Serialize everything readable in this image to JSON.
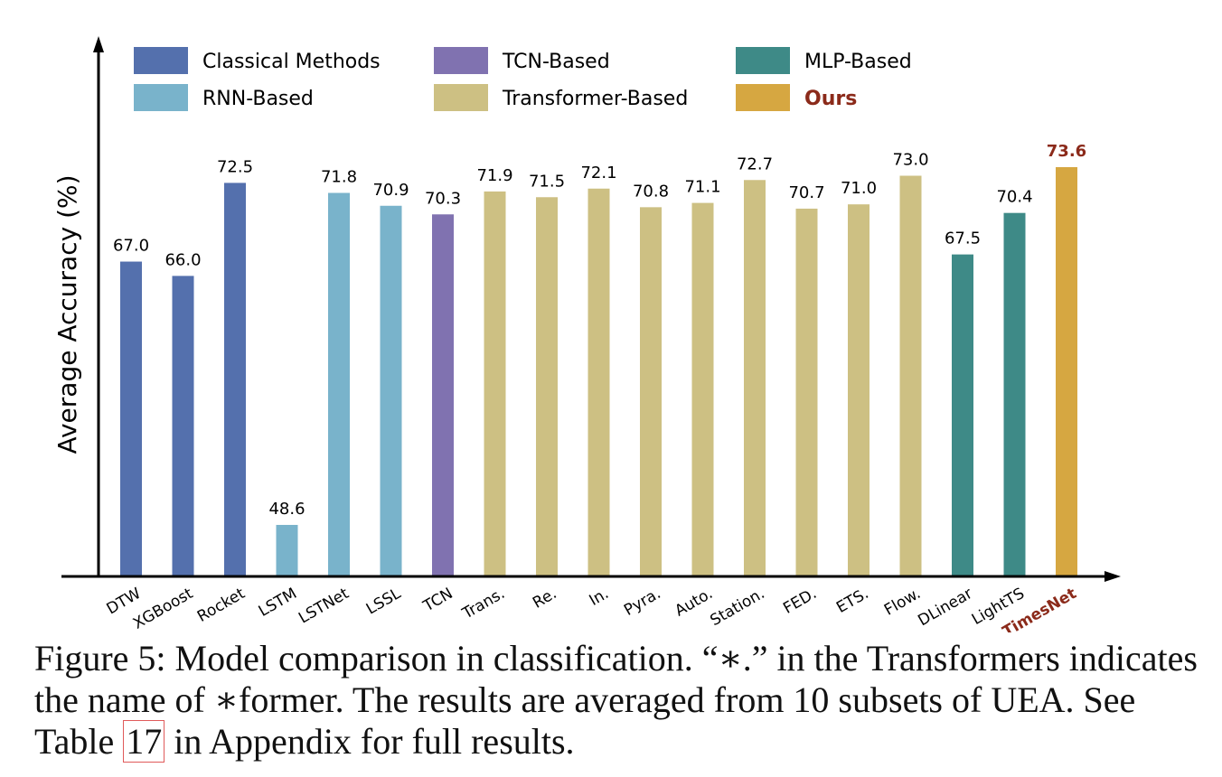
{
  "chart_data": {
    "type": "bar",
    "ylabel": "Average Accuracy (%)",
    "xlabel": "",
    "ylim": [
      45,
      75
    ],
    "grid": false,
    "legend_position": "top",
    "categories": [
      "DTW",
      "XGBoost",
      "Rocket",
      "LSTM",
      "LSTNet",
      "LSSL",
      "TCN",
      "Trans.",
      "Re.",
      "In.",
      "Pyra.",
      "Auto.",
      "Station.",
      "FED.",
      "ETS.",
      "Flow.",
      "DLinear",
      "LightTS",
      "TimesNet"
    ],
    "values": [
      67.0,
      66.0,
      72.5,
      48.6,
      71.8,
      70.9,
      70.3,
      71.9,
      71.5,
      72.1,
      70.8,
      71.1,
      72.7,
      70.7,
      71.0,
      73.0,
      67.5,
      70.4,
      73.6
    ],
    "value_labels": [
      "67.0",
      "66.0",
      "72.5",
      "48.6",
      "71.8",
      "70.9",
      "70.3",
      "71.9",
      "71.5",
      "72.1",
      "70.8",
      "71.1",
      "72.7",
      "70.7",
      "71.0",
      "73.0",
      "67.5",
      "70.4",
      "73.6"
    ],
    "groups": [
      "Classical Methods",
      "Classical Methods",
      "Classical Methods",
      "RNN-Based",
      "RNN-Based",
      "RNN-Based",
      "TCN-Based",
      "Transformer-Based",
      "Transformer-Based",
      "Transformer-Based",
      "Transformer-Based",
      "Transformer-Based",
      "Transformer-Based",
      "Transformer-Based",
      "Transformer-Based",
      "Transformer-Based",
      "MLP-Based",
      "MLP-Based",
      "Ours"
    ],
    "legend": [
      {
        "name": "Classical Methods",
        "color": "#5470ad"
      },
      {
        "name": "TCN-Based",
        "color": "#8072b0"
      },
      {
        "name": "MLP-Based",
        "color": "#3e8a87"
      },
      {
        "name": "RNN-Based",
        "color": "#79b3cb"
      },
      {
        "name": "Transformer-Based",
        "color": "#cdc083"
      },
      {
        "name": "Ours",
        "color": "#d6a741"
      }
    ],
    "highlight": {
      "category": "TimesNet",
      "text_color": "#8b2a1a"
    }
  },
  "caption": {
    "text_before_ref": "Figure 5: Model comparison in classification. “∗.” in the Transformers indicates the name of ∗former. The results are averaged from 10 subsets of UEA. See Table ",
    "ref": "17",
    "text_after_ref": " in Appendix for full results."
  }
}
